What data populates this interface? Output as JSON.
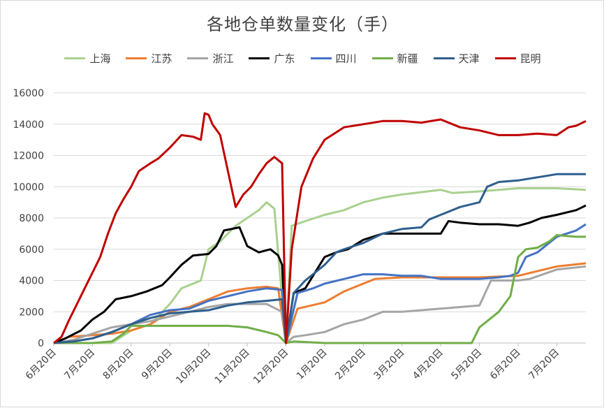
{
  "chart_data": {
    "type": "line",
    "title": "各地仓单数量变化（手）",
    "ylim": [
      0,
      16000
    ],
    "yticks": [
      0,
      2000,
      4000,
      6000,
      8000,
      10000,
      12000,
      14000,
      16000
    ],
    "xticks": [
      "6月20日",
      "7月20日",
      "8月20日",
      "9月20日",
      "10月20日",
      "11月20日",
      "12月20日",
      "1月20日",
      "2月20日",
      "3月20日",
      "4月20日",
      "5月20日",
      "6月20日",
      "7月20日"
    ],
    "x_domain": [
      0,
      13.75
    ],
    "grid": "horizontal",
    "legend_position": "top",
    "series": [
      {
        "name": "上海",
        "color": "#a9d18e",
        "points": [
          [
            0,
            0
          ],
          [
            1,
            0
          ],
          [
            1.5,
            0
          ],
          [
            2.0,
            800
          ],
          [
            2.5,
            1200
          ],
          [
            3.0,
            2500
          ],
          [
            3.3,
            3500
          ],
          [
            3.8,
            4000
          ],
          [
            4.0,
            6000
          ],
          [
            4.3,
            6500
          ],
          [
            4.7,
            7500
          ],
          [
            5.0,
            8000
          ],
          [
            5.3,
            8500
          ],
          [
            5.5,
            9000
          ],
          [
            5.7,
            8600
          ],
          [
            6.0,
            0
          ],
          [
            6.15,
            7500
          ],
          [
            6.5,
            7800
          ],
          [
            7.0,
            8200
          ],
          [
            7.5,
            8500
          ],
          [
            8.0,
            9000
          ],
          [
            8.5,
            9300
          ],
          [
            9.0,
            9500
          ],
          [
            10.0,
            9800
          ],
          [
            10.3,
            9600
          ],
          [
            11.0,
            9700
          ],
          [
            12.0,
            9900
          ],
          [
            13.0,
            9900
          ],
          [
            13.75,
            9800
          ]
        ]
      },
      {
        "name": "江苏",
        "color": "#ed7d31",
        "points": [
          [
            0,
            0
          ],
          [
            0.4,
            400
          ],
          [
            1.0,
            500
          ],
          [
            1.5,
            600
          ],
          [
            2.0,
            800
          ],
          [
            2.5,
            1200
          ],
          [
            3.0,
            2000
          ],
          [
            3.5,
            2300
          ],
          [
            4.0,
            2800
          ],
          [
            4.5,
            3300
          ],
          [
            5.0,
            3500
          ],
          [
            5.5,
            3600
          ],
          [
            5.8,
            3500
          ],
          [
            6.0,
            0
          ],
          [
            6.3,
            2200
          ],
          [
            7.0,
            2600
          ],
          [
            7.5,
            3300
          ],
          [
            8.0,
            3800
          ],
          [
            8.3,
            4100
          ],
          [
            9.0,
            4200
          ],
          [
            10.0,
            4200
          ],
          [
            11.0,
            4200
          ],
          [
            12.0,
            4300
          ],
          [
            12.5,
            4600
          ],
          [
            13.0,
            4900
          ],
          [
            13.75,
            5100
          ]
        ]
      },
      {
        "name": "浙江",
        "color": "#a5a5a5",
        "points": [
          [
            0,
            0
          ],
          [
            0.5,
            200
          ],
          [
            1.0,
            600
          ],
          [
            1.5,
            1000
          ],
          [
            2.0,
            1200
          ],
          [
            2.5,
            1400
          ],
          [
            3.0,
            1700
          ],
          [
            3.5,
            2000
          ],
          [
            4.0,
            2300
          ],
          [
            4.5,
            2500
          ],
          [
            5.0,
            2500
          ],
          [
            5.5,
            2500
          ],
          [
            5.9,
            2000
          ],
          [
            6.0,
            0
          ],
          [
            6.2,
            400
          ],
          [
            6.5,
            500
          ],
          [
            7.0,
            700
          ],
          [
            7.5,
            1200
          ],
          [
            8.0,
            1500
          ],
          [
            8.5,
            2000
          ],
          [
            9.0,
            2000
          ],
          [
            9.5,
            2100
          ],
          [
            10.0,
            2200
          ],
          [
            10.5,
            2300
          ],
          [
            11.0,
            2400
          ],
          [
            11.3,
            4000
          ],
          [
            12.0,
            4000
          ],
          [
            12.3,
            4100
          ],
          [
            13.0,
            4700
          ],
          [
            13.75,
            4900
          ]
        ]
      },
      {
        "name": "广东",
        "color": "#000000",
        "points": [
          [
            0,
            0
          ],
          [
            0.3,
            300
          ],
          [
            0.7,
            800
          ],
          [
            1.0,
            1500
          ],
          [
            1.3,
            2000
          ],
          [
            1.6,
            2800
          ],
          [
            2.0,
            3000
          ],
          [
            2.4,
            3300
          ],
          [
            2.8,
            3700
          ],
          [
            3.0,
            4200
          ],
          [
            3.3,
            5000
          ],
          [
            3.6,
            5600
          ],
          [
            4.0,
            5700
          ],
          [
            4.2,
            6200
          ],
          [
            4.4,
            7200
          ],
          [
            4.6,
            7300
          ],
          [
            4.8,
            7400
          ],
          [
            5.0,
            6200
          ],
          [
            5.3,
            5800
          ],
          [
            5.6,
            6000
          ],
          [
            5.8,
            5600
          ],
          [
            5.9,
            5000
          ],
          [
            6.0,
            0
          ],
          [
            6.2,
            3200
          ],
          [
            6.5,
            3500
          ],
          [
            7.0,
            5500
          ],
          [
            7.3,
            5800
          ],
          [
            7.6,
            6000
          ],
          [
            8.0,
            6600
          ],
          [
            8.5,
            7000
          ],
          [
            9.0,
            7000
          ],
          [
            9.5,
            7000
          ],
          [
            10.0,
            7000
          ],
          [
            10.2,
            7800
          ],
          [
            10.5,
            7700
          ],
          [
            11.0,
            7600
          ],
          [
            11.5,
            7600
          ],
          [
            12.0,
            7500
          ],
          [
            12.3,
            7700
          ],
          [
            12.6,
            8000
          ],
          [
            13.0,
            8200
          ],
          [
            13.5,
            8500
          ],
          [
            13.75,
            8800
          ]
        ]
      },
      {
        "name": "四川",
        "color": "#4472c4",
        "points": [
          [
            0,
            0
          ],
          [
            0.5,
            100
          ],
          [
            1.0,
            300
          ],
          [
            1.5,
            700
          ],
          [
            2.0,
            1200
          ],
          [
            2.5,
            1800
          ],
          [
            3.0,
            2100
          ],
          [
            3.5,
            2200
          ],
          [
            4.0,
            2700
          ],
          [
            4.5,
            3000
          ],
          [
            5.0,
            3300
          ],
          [
            5.5,
            3500
          ],
          [
            5.9,
            3400
          ],
          [
            6.0,
            0
          ],
          [
            6.3,
            3200
          ],
          [
            6.7,
            3500
          ],
          [
            7.0,
            3800
          ],
          [
            7.5,
            4100
          ],
          [
            8.0,
            4400
          ],
          [
            8.5,
            4400
          ],
          [
            9.0,
            4300
          ],
          [
            9.5,
            4300
          ],
          [
            10.0,
            4100
          ],
          [
            10.5,
            4100
          ],
          [
            11.0,
            4100
          ],
          [
            11.5,
            4200
          ],
          [
            11.8,
            4300
          ],
          [
            12.0,
            4500
          ],
          [
            12.2,
            5500
          ],
          [
            12.5,
            5800
          ],
          [
            13.0,
            6800
          ],
          [
            13.5,
            7200
          ],
          [
            13.75,
            7600
          ]
        ]
      },
      {
        "name": "新疆",
        "color": "#70ad47",
        "points": [
          [
            0,
            0
          ],
          [
            1.0,
            0
          ],
          [
            1.5,
            100
          ],
          [
            1.8,
            600
          ],
          [
            2.0,
            1100
          ],
          [
            2.5,
            1100
          ],
          [
            3.0,
            1100
          ],
          [
            3.5,
            1100
          ],
          [
            4.0,
            1100
          ],
          [
            4.5,
            1100
          ],
          [
            5.0,
            1000
          ],
          [
            5.5,
            700
          ],
          [
            5.8,
            500
          ],
          [
            6.0,
            0
          ],
          [
            6.2,
            100
          ],
          [
            7.0,
            0
          ],
          [
            8.0,
            0
          ],
          [
            9.0,
            0
          ],
          [
            10.0,
            0
          ],
          [
            10.8,
            0
          ],
          [
            11.0,
            1000
          ],
          [
            11.2,
            1400
          ],
          [
            11.5,
            2000
          ],
          [
            11.8,
            3000
          ],
          [
            12.0,
            5500
          ],
          [
            12.2,
            6000
          ],
          [
            12.5,
            6100
          ],
          [
            12.8,
            6500
          ],
          [
            13.0,
            6900
          ],
          [
            13.5,
            6800
          ],
          [
            13.75,
            6800
          ]
        ]
      },
      {
        "name": "天津",
        "color": "#2e5f8e",
        "points": [
          [
            0,
            0
          ],
          [
            0.5,
            100
          ],
          [
            1.0,
            300
          ],
          [
            1.5,
            700
          ],
          [
            2.0,
            1200
          ],
          [
            2.5,
            1600
          ],
          [
            3.0,
            1900
          ],
          [
            3.5,
            2000
          ],
          [
            4.0,
            2100
          ],
          [
            4.5,
            2400
          ],
          [
            5.0,
            2600
          ],
          [
            5.5,
            2700
          ],
          [
            5.9,
            2800
          ],
          [
            6.0,
            0
          ],
          [
            6.2,
            3200
          ],
          [
            6.5,
            4000
          ],
          [
            7.0,
            5000
          ],
          [
            7.3,
            5800
          ],
          [
            7.5,
            6000
          ],
          [
            8.0,
            6400
          ],
          [
            8.5,
            7000
          ],
          [
            9.0,
            7300
          ],
          [
            9.5,
            7400
          ],
          [
            9.7,
            7900
          ],
          [
            10.0,
            8200
          ],
          [
            10.5,
            8700
          ],
          [
            11.0,
            9000
          ],
          [
            11.2,
            10000
          ],
          [
            11.5,
            10300
          ],
          [
            12.0,
            10400
          ],
          [
            12.5,
            10600
          ],
          [
            13.0,
            10800
          ],
          [
            13.75,
            10800
          ]
        ]
      },
      {
        "name": "昆明",
        "color": "#c00000",
        "points": [
          [
            0,
            0
          ],
          [
            0.2,
            400
          ],
          [
            0.4,
            1500
          ],
          [
            0.6,
            2500
          ],
          [
            0.8,
            3500
          ],
          [
            1.0,
            4500
          ],
          [
            1.2,
            5500
          ],
          [
            1.4,
            7000
          ],
          [
            1.6,
            8300
          ],
          [
            1.8,
            9200
          ],
          [
            2.0,
            10000
          ],
          [
            2.2,
            11000
          ],
          [
            2.5,
            11500
          ],
          [
            2.7,
            11800
          ],
          [
            3.0,
            12500
          ],
          [
            3.3,
            13300
          ],
          [
            3.6,
            13200
          ],
          [
            3.8,
            13000
          ],
          [
            3.9,
            14700
          ],
          [
            4.0,
            14600
          ],
          [
            4.1,
            14000
          ],
          [
            4.3,
            13300
          ],
          [
            4.5,
            11000
          ],
          [
            4.7,
            8700
          ],
          [
            4.9,
            9500
          ],
          [
            5.1,
            10000
          ],
          [
            5.3,
            10800
          ],
          [
            5.5,
            11500
          ],
          [
            5.7,
            11900
          ],
          [
            5.9,
            11500
          ],
          [
            6.0,
            0
          ],
          [
            6.15,
            6000
          ],
          [
            6.4,
            10000
          ],
          [
            6.7,
            11800
          ],
          [
            7.0,
            13000
          ],
          [
            7.5,
            13800
          ],
          [
            8.0,
            14000
          ],
          [
            8.5,
            14200
          ],
          [
            9.0,
            14200
          ],
          [
            9.5,
            14100
          ],
          [
            10.0,
            14300
          ],
          [
            10.2,
            14100
          ],
          [
            10.5,
            13800
          ],
          [
            11.0,
            13600
          ],
          [
            11.5,
            13300
          ],
          [
            12.0,
            13300
          ],
          [
            12.5,
            13400
          ],
          [
            13.0,
            13300
          ],
          [
            13.3,
            13800
          ],
          [
            13.5,
            13900
          ],
          [
            13.75,
            14200
          ]
        ]
      }
    ]
  }
}
